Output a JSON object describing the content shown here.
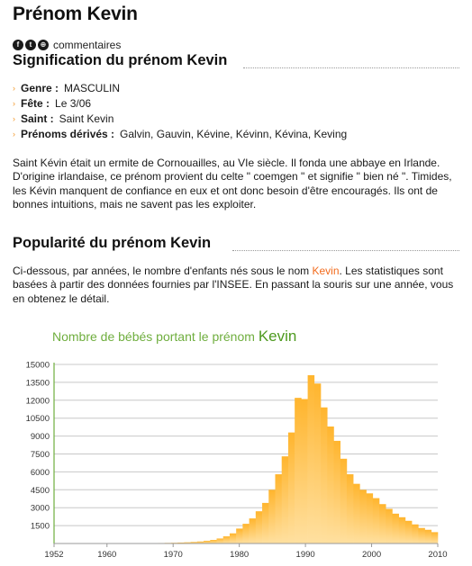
{
  "page": {
    "title": "Prénom Kevin",
    "comments_label": "commentaires"
  },
  "social_icons": [
    "facebook-icon",
    "twitter-icon",
    "share-icon"
  ],
  "signification": {
    "heading": "Signification du prénom Kevin",
    "genre_label": "Genre :",
    "genre_value": "MASCULIN",
    "fete_label": "Fête :",
    "fete_value": "Le 3/06",
    "saint_label": "Saint :",
    "saint_value": "Saint Kevin",
    "derives_label": "Prénoms dérivés :",
    "derives_value": "Galvin, Gauvin, Kévine, Kévinn, Kévina, Keving",
    "description": "Saint Kévin était un ermite de Cornouailles, au VIe siècle. Il fonda une abbaye en Irlande. D'origine irlandaise, ce prénom provient du celte \" coemgen \" et signifie \" bien né \". Timides, les Kévin manquent de confiance en eux et ont donc besoin d'être encouragés. Ils ont de bonnes intuitions, mais ne savent pas les exploiter."
  },
  "popularite": {
    "heading": "Popularité du prénom Kevin",
    "intro_before": "Ci-dessous, par années, le nombre d'enfants nés sous le nom ",
    "intro_name": "Kevin",
    "intro_after": ". Les statistiques sont basées à partir des données fournies par l'INSEE. En passant la souris sur une année, vous en obtenez le détail."
  },
  "colors": {
    "accent_orange": "#f26a1b",
    "arrow_orange": "#f39a2b",
    "chart_title_green": "#6fae3e",
    "axis_green": "#6fae3e",
    "bar_top": "#ffb52e",
    "bar_bottom": "#ffe0a0"
  },
  "chart_data": {
    "type": "bar",
    "title_prefix": "Nombre de bébés portant le prénom",
    "title_name": "Kevin",
    "ylim": [
      0,
      15000
    ],
    "y_ticks": [
      1500,
      3000,
      4500,
      6000,
      7500,
      9000,
      10500,
      12000,
      13500,
      15000
    ],
    "x_ticks": [
      1952,
      1960,
      1970,
      1980,
      1990,
      2000,
      2010
    ],
    "x_range": [
      1952,
      2010
    ],
    "grid": true,
    "years": [
      1952,
      1953,
      1954,
      1955,
      1956,
      1957,
      1958,
      1959,
      1960,
      1961,
      1962,
      1963,
      1964,
      1965,
      1966,
      1967,
      1968,
      1969,
      1970,
      1971,
      1972,
      1973,
      1974,
      1975,
      1976,
      1977,
      1978,
      1979,
      1980,
      1981,
      1982,
      1983,
      1984,
      1985,
      1986,
      1987,
      1988,
      1989,
      1990,
      1991,
      1992,
      1993,
      1994,
      1995,
      1996,
      1997,
      1998,
      1999,
      2000,
      2001,
      2002,
      2003,
      2004,
      2005,
      2006,
      2007,
      2008,
      2009,
      2010
    ],
    "values": [
      10,
      10,
      10,
      10,
      10,
      10,
      10,
      10,
      15,
      15,
      20,
      20,
      25,
      25,
      30,
      30,
      40,
      50,
      60,
      80,
      100,
      130,
      170,
      230,
      300,
      420,
      600,
      850,
      1250,
      1650,
      2100,
      2700,
      3400,
      4500,
      5800,
      7300,
      9300,
      12200,
      12100,
      14100,
      13400,
      11400,
      9800,
      8600,
      7100,
      5800,
      5000,
      4500,
      4200,
      3800,
      3300,
      2900,
      2500,
      2200,
      1900,
      1600,
      1300,
      1150,
      950
    ]
  }
}
